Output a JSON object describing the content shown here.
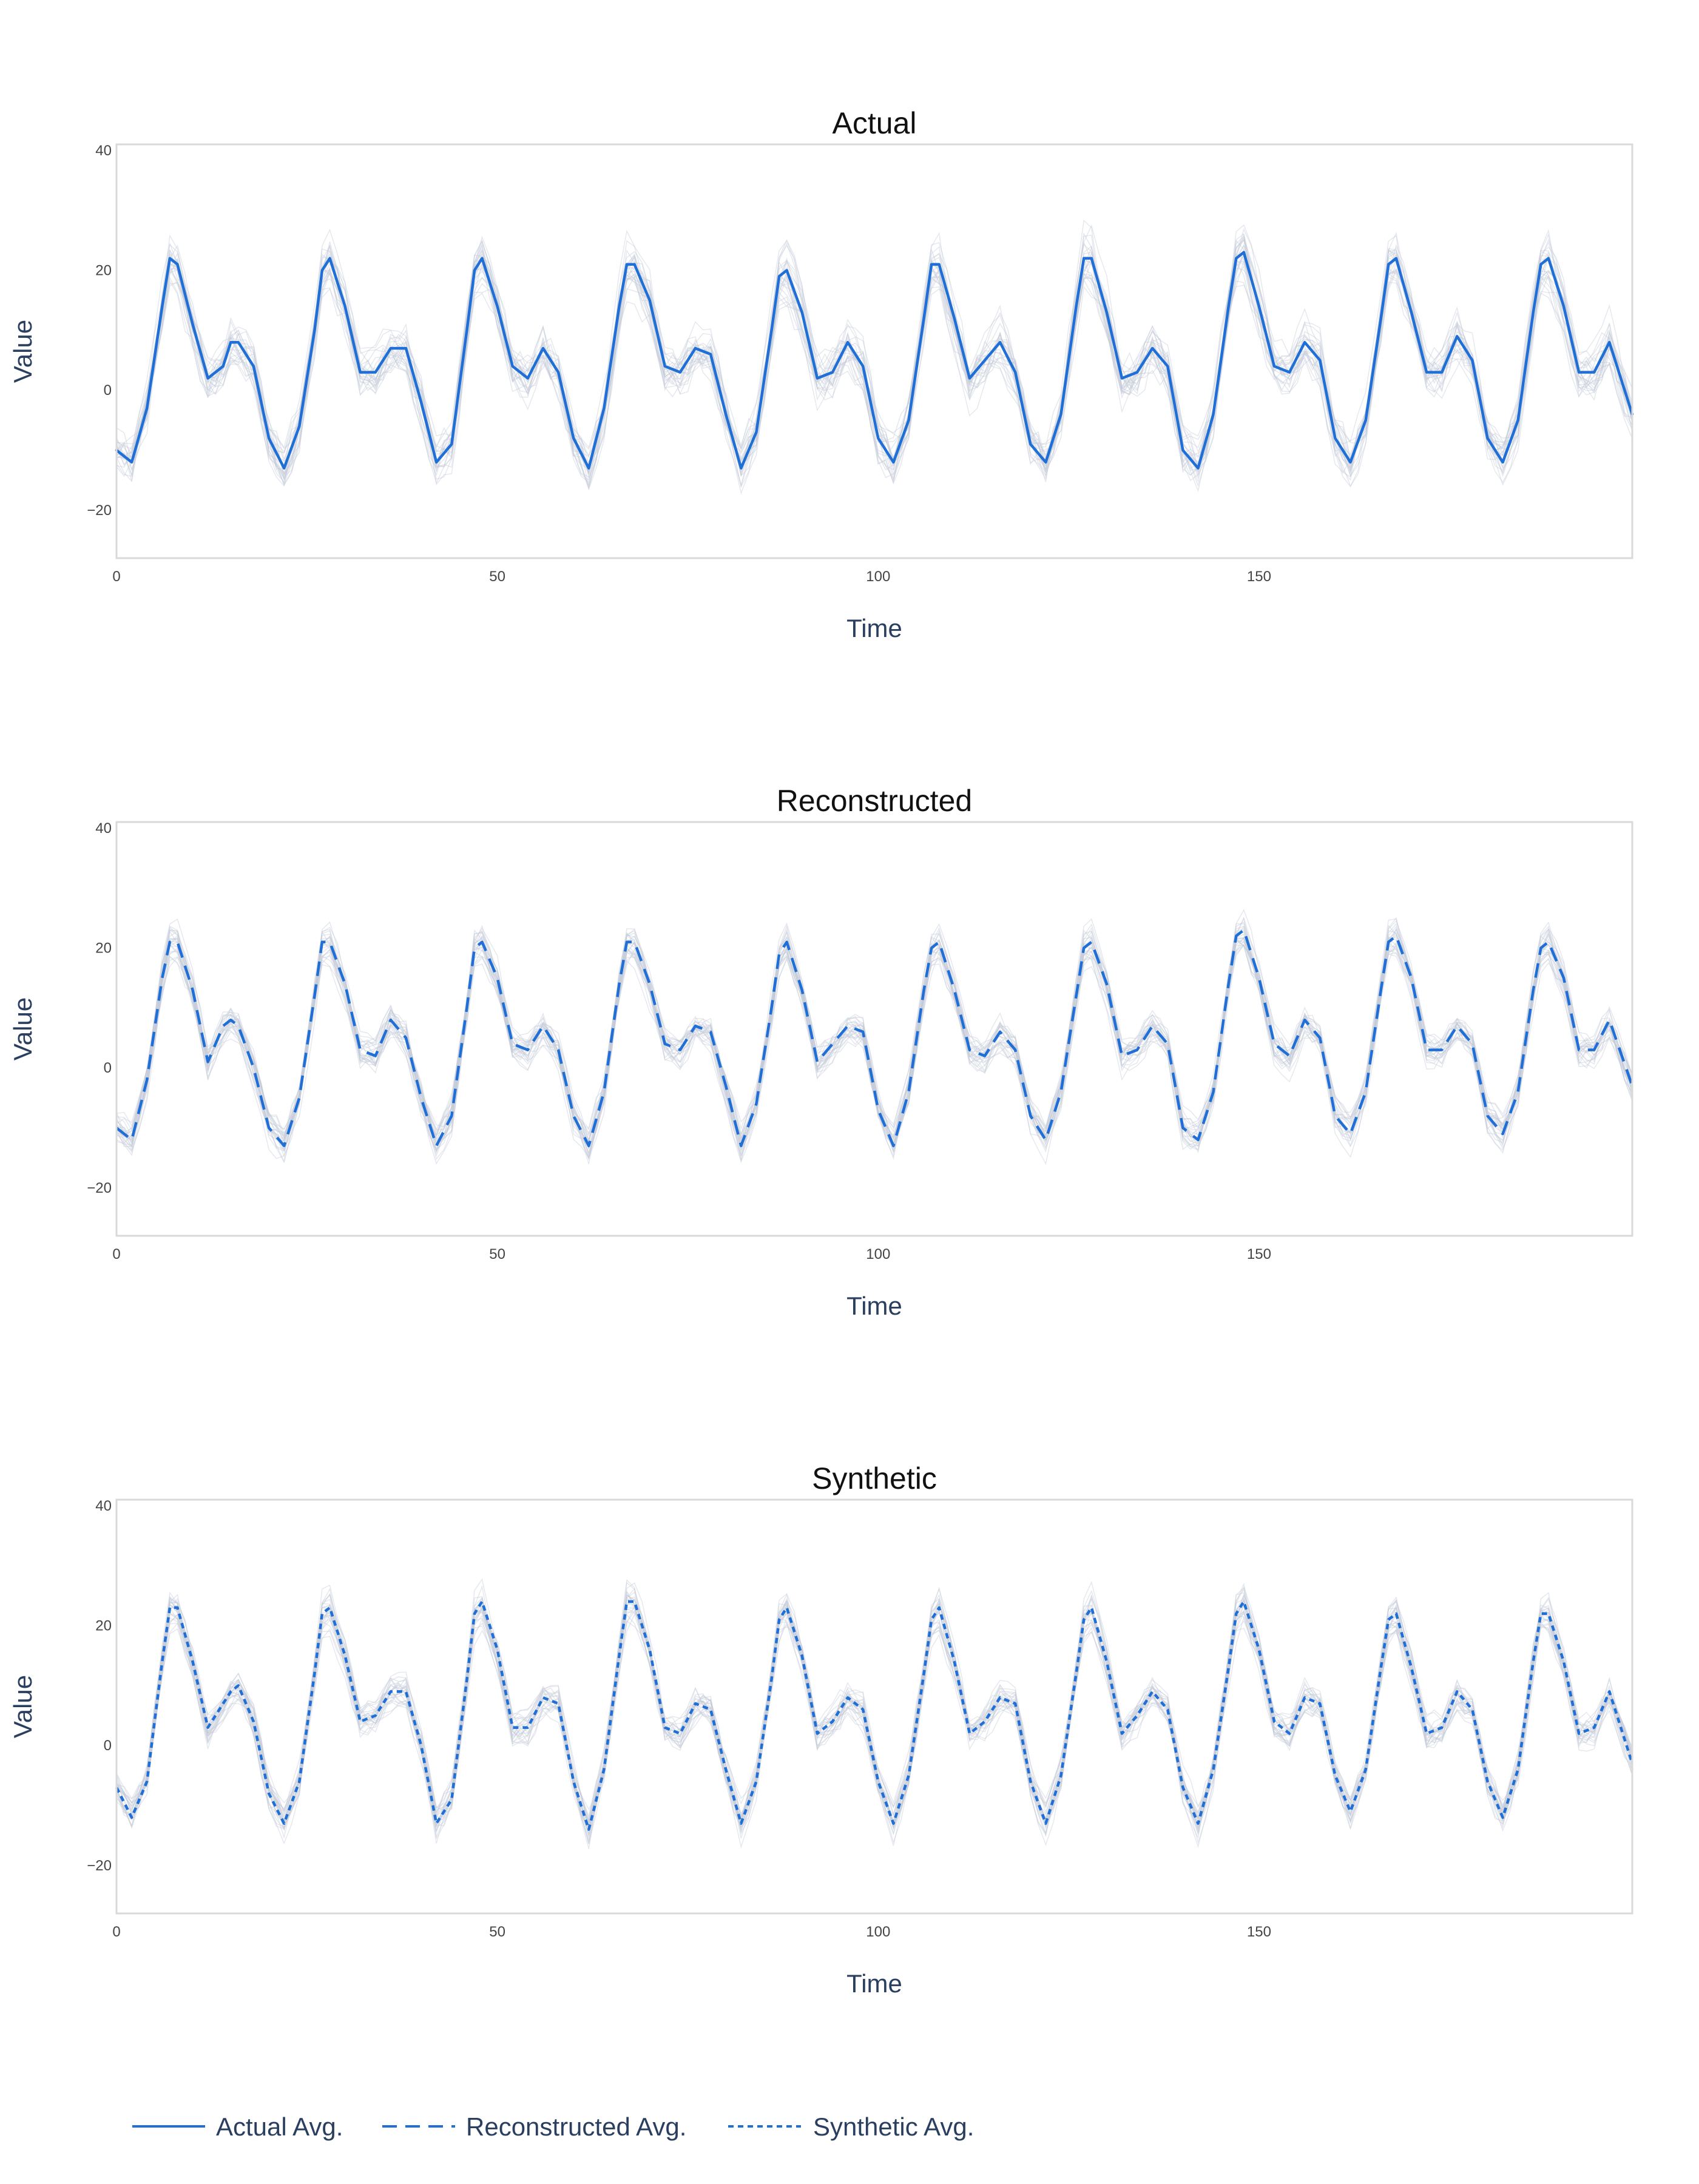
{
  "colors": {
    "avg_line": "#1f6fd6",
    "sample_lines": "#c3cad6",
    "frame": "#d9d9d9",
    "background": "#ffffff"
  },
  "chart_data": [
    {
      "type": "line",
      "title": "Actual",
      "xlabel": "Time",
      "ylabel": "Value",
      "xlim": [
        0,
        199
      ],
      "ylim": [
        -28,
        41
      ],
      "x_ticks": [
        0,
        50,
        100,
        150
      ],
      "y_ticks": [
        -20,
        0,
        20,
        40
      ],
      "x_tick_labels": [
        "0",
        "50",
        "100",
        "150"
      ],
      "y_tick_labels": [
        "−20",
        "0",
        "20",
        "40"
      ],
      "grid": false,
      "series": [
        {
          "name": "Actual Avg.",
          "line_style": "solid",
          "x": [
            0,
            2,
            4,
            6,
            7,
            8,
            10,
            12,
            14,
            15,
            16,
            18,
            20,
            22,
            24,
            26,
            27,
            28,
            30,
            32,
            34,
            36,
            38,
            40,
            42,
            44,
            46,
            47,
            48,
            50,
            52,
            54,
            56,
            58,
            60,
            62,
            64,
            66,
            67,
            68,
            70,
            72,
            74,
            76,
            78,
            80,
            82,
            84,
            86,
            87,
            88,
            90,
            92,
            94,
            96,
            98,
            100,
            102,
            104,
            106,
            107,
            108,
            110,
            112,
            114,
            116,
            118,
            120,
            122,
            124,
            126,
            127,
            128,
            130,
            132,
            134,
            136,
            138,
            140,
            142,
            144,
            146,
            147,
            148,
            150,
            152,
            154,
            156,
            158,
            160,
            162,
            164,
            166,
            167,
            168,
            170,
            172,
            174,
            176,
            178,
            180,
            182,
            184,
            186,
            187,
            188,
            190,
            192,
            194,
            196,
            199
          ],
          "y": [
            -10,
            -12,
            -3,
            14,
            22,
            21,
            11,
            2,
            4,
            8,
            8,
            4,
            -8,
            -13,
            -6,
            10,
            20,
            22,
            14,
            3,
            3,
            7,
            7,
            -2,
            -12,
            -9,
            10,
            20,
            22,
            14,
            4,
            2,
            7,
            3,
            -8,
            -13,
            -3,
            14,
            21,
            21,
            15,
            4,
            3,
            7,
            6,
            -4,
            -13,
            -7,
            10,
            19,
            20,
            13,
            2,
            3,
            8,
            4,
            -8,
            -12,
            -5,
            12,
            21,
            21,
            12,
            2,
            5,
            8,
            3,
            -9,
            -12,
            -4,
            14,
            22,
            22,
            13,
            2,
            3,
            7,
            4,
            -10,
            -13,
            -4,
            14,
            22,
            23,
            14,
            4,
            3,
            8,
            5,
            -8,
            -12,
            -5,
            12,
            21,
            22,
            13,
            3,
            3,
            9,
            5,
            -8,
            -12,
            -5,
            13,
            21,
            22,
            14,
            3,
            3,
            8,
            -4
          ]
        }
      ]
    },
    {
      "type": "line",
      "title": "Reconstructed",
      "xlabel": "Time",
      "ylabel": "Value",
      "xlim": [
        0,
        199
      ],
      "ylim": [
        -28,
        41
      ],
      "x_ticks": [
        0,
        50,
        100,
        150
      ],
      "y_ticks": [
        -20,
        0,
        20,
        40
      ],
      "x_tick_labels": [
        "0",
        "50",
        "100",
        "150"
      ],
      "y_tick_labels": [
        "−20",
        "0",
        "20",
        "40"
      ],
      "grid": false,
      "series": [
        {
          "name": "Reconstructed Avg.",
          "line_style": "dashed",
          "x": [
            0,
            2,
            4,
            6,
            7,
            8,
            10,
            12,
            14,
            15,
            16,
            18,
            20,
            22,
            24,
            26,
            27,
            28,
            30,
            32,
            34,
            36,
            38,
            40,
            42,
            44,
            46,
            47,
            48,
            50,
            52,
            54,
            56,
            58,
            60,
            62,
            64,
            66,
            67,
            68,
            70,
            72,
            74,
            76,
            78,
            80,
            82,
            84,
            86,
            87,
            88,
            90,
            92,
            94,
            96,
            98,
            100,
            102,
            104,
            106,
            107,
            108,
            110,
            112,
            114,
            116,
            118,
            120,
            122,
            124,
            126,
            127,
            128,
            130,
            132,
            134,
            136,
            138,
            140,
            142,
            144,
            146,
            147,
            148,
            150,
            152,
            154,
            156,
            158,
            160,
            162,
            164,
            166,
            167,
            168,
            170,
            172,
            174,
            176,
            178,
            180,
            182,
            184,
            186,
            187,
            188,
            190,
            192,
            194,
            196,
            199
          ],
          "y": [
            -10,
            -12,
            -2,
            15,
            21,
            21,
            13,
            1,
            7,
            8,
            7,
            0,
            -10,
            -13,
            -5,
            12,
            21,
            21,
            14,
            3,
            2,
            8,
            5,
            -5,
            -13,
            -8,
            10,
            20,
            21,
            15,
            4,
            3,
            7,
            3,
            -8,
            -13,
            -4,
            14,
            21,
            21,
            14,
            4,
            3,
            7,
            6,
            -3,
            -13,
            -6,
            10,
            19,
            21,
            13,
            1,
            4,
            7,
            6,
            -7,
            -13,
            -4,
            13,
            20,
            21,
            13,
            3,
            2,
            6,
            3,
            -8,
            -12,
            -4,
            12,
            20,
            21,
            14,
            2,
            3,
            7,
            4,
            -10,
            -12,
            -4,
            14,
            22,
            23,
            15,
            4,
            2,
            8,
            5,
            -8,
            -11,
            -4,
            13,
            21,
            22,
            15,
            3,
            3,
            7,
            4,
            -8,
            -11,
            -4,
            13,
            20,
            21,
            15,
            3,
            3,
            8,
            -3
          ]
        }
      ]
    },
    {
      "type": "line",
      "title": "Synthetic",
      "xlabel": "Time",
      "ylabel": "Value",
      "xlim": [
        0,
        199
      ],
      "ylim": [
        -28,
        41
      ],
      "x_ticks": [
        0,
        50,
        100,
        150
      ],
      "y_ticks": [
        -20,
        0,
        20,
        40
      ],
      "x_tick_labels": [
        "0",
        "50",
        "100",
        "150"
      ],
      "y_tick_labels": [
        "−20",
        "0",
        "20",
        "40"
      ],
      "grid": false,
      "series": [
        {
          "name": "Synthetic Avg.",
          "line_style": "dotted",
          "x": [
            0,
            2,
            4,
            6,
            7,
            8,
            10,
            12,
            14,
            15,
            16,
            18,
            20,
            22,
            24,
            26,
            27,
            28,
            30,
            32,
            34,
            36,
            38,
            40,
            42,
            44,
            46,
            47,
            48,
            50,
            52,
            54,
            56,
            58,
            60,
            62,
            64,
            66,
            67,
            68,
            70,
            72,
            74,
            76,
            78,
            80,
            82,
            84,
            86,
            87,
            88,
            90,
            92,
            94,
            96,
            98,
            100,
            102,
            104,
            106,
            107,
            108,
            110,
            112,
            114,
            116,
            118,
            120,
            122,
            124,
            126,
            127,
            128,
            130,
            132,
            134,
            136,
            138,
            140,
            142,
            144,
            146,
            147,
            148,
            150,
            152,
            154,
            156,
            158,
            160,
            162,
            164,
            166,
            167,
            168,
            170,
            172,
            174,
            176,
            178,
            180,
            182,
            184,
            186,
            187,
            188,
            190,
            192,
            194,
            196,
            199
          ],
          "y": [
            -7,
            -12,
            -6,
            14,
            23,
            23,
            14,
            3,
            7,
            9,
            10,
            4,
            -8,
            -13,
            -6,
            12,
            22,
            23,
            15,
            4,
            5,
            9,
            9,
            0,
            -13,
            -9,
            11,
            22,
            24,
            16,
            3,
            3,
            8,
            7,
            -6,
            -14,
            -4,
            15,
            24,
            24,
            16,
            3,
            2,
            7,
            6,
            -4,
            -13,
            -6,
            11,
            21,
            23,
            15,
            2,
            4,
            8,
            6,
            -6,
            -13,
            -5,
            12,
            21,
            23,
            14,
            2,
            4,
            8,
            7,
            -6,
            -13,
            -5,
            12,
            21,
            23,
            14,
            2,
            5,
            9,
            6,
            -7,
            -13,
            -4,
            13,
            22,
            24,
            16,
            4,
            2,
            8,
            7,
            -5,
            -11,
            -4,
            13,
            21,
            22,
            13,
            2,
            3,
            9,
            6,
            -6,
            -12,
            -4,
            14,
            22,
            22,
            14,
            2,
            3,
            9,
            -3
          ]
        }
      ]
    }
  ],
  "legend": {
    "position": "bottom-left",
    "items": [
      {
        "label": "Actual Avg.",
        "line_style": "solid"
      },
      {
        "label": "Reconstructed Avg.",
        "line_style": "dashed"
      },
      {
        "label": "Synthetic Avg.",
        "line_style": "dotted"
      }
    ]
  }
}
